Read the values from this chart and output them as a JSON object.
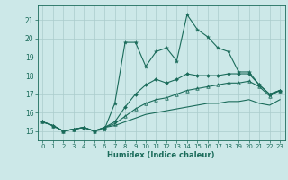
{
  "xlabel": "Humidex (Indice chaleur)",
  "bg_color": "#cce8e8",
  "grid_color": "#aacccc",
  "line_color": "#1a6b5a",
  "xlim": [
    -0.5,
    23.5
  ],
  "ylim": [
    14.5,
    21.8
  ],
  "yticks": [
    15,
    16,
    17,
    18,
    19,
    20,
    21
  ],
  "xticks": [
    0,
    1,
    2,
    3,
    4,
    5,
    6,
    7,
    8,
    9,
    10,
    11,
    12,
    13,
    14,
    15,
    16,
    17,
    18,
    19,
    20,
    21,
    22,
    23
  ],
  "s1_x": [
    0,
    1,
    2,
    3,
    4,
    5,
    6,
    7,
    8,
    9,
    10,
    11,
    12,
    13,
    14,
    15,
    16,
    17,
    18,
    19,
    20,
    21,
    22,
    23
  ],
  "s1_y": [
    15.5,
    15.3,
    15.0,
    15.1,
    15.2,
    15.0,
    15.1,
    16.5,
    19.8,
    19.8,
    18.5,
    19.3,
    19.5,
    18.8,
    21.3,
    20.5,
    20.1,
    19.5,
    19.3,
    18.2,
    18.2,
    17.5,
    17.0,
    17.2
  ],
  "s2_x": [
    0,
    1,
    2,
    3,
    4,
    5,
    6,
    7,
    8,
    9,
    10,
    11,
    12,
    13,
    14,
    15,
    16,
    17,
    18,
    19,
    20,
    21,
    22,
    23
  ],
  "s2_y": [
    15.5,
    15.3,
    15.0,
    15.1,
    15.2,
    15.0,
    15.2,
    15.5,
    16.3,
    17.0,
    17.5,
    17.8,
    17.6,
    17.8,
    18.1,
    18.0,
    18.0,
    18.0,
    18.1,
    18.1,
    18.1,
    17.5,
    17.0,
    17.2
  ],
  "s3_x": [
    0,
    1,
    2,
    3,
    4,
    5,
    6,
    7,
    8,
    9,
    10,
    11,
    12,
    13,
    14,
    15,
    16,
    17,
    18,
    19,
    20,
    21,
    22,
    23
  ],
  "s3_y": [
    15.5,
    15.3,
    15.0,
    15.1,
    15.2,
    15.0,
    15.2,
    15.4,
    15.8,
    16.2,
    16.5,
    16.7,
    16.8,
    17.0,
    17.2,
    17.3,
    17.4,
    17.5,
    17.6,
    17.6,
    17.7,
    17.4,
    16.9,
    17.2
  ],
  "s4_x": [
    0,
    1,
    2,
    3,
    4,
    5,
    6,
    7,
    8,
    9,
    10,
    11,
    12,
    13,
    14,
    15,
    16,
    17,
    18,
    19,
    20,
    21,
    22,
    23
  ],
  "s4_y": [
    15.5,
    15.3,
    15.0,
    15.1,
    15.2,
    15.0,
    15.2,
    15.3,
    15.5,
    15.7,
    15.9,
    16.0,
    16.1,
    16.2,
    16.3,
    16.4,
    16.5,
    16.5,
    16.6,
    16.6,
    16.7,
    16.5,
    16.4,
    16.7
  ]
}
